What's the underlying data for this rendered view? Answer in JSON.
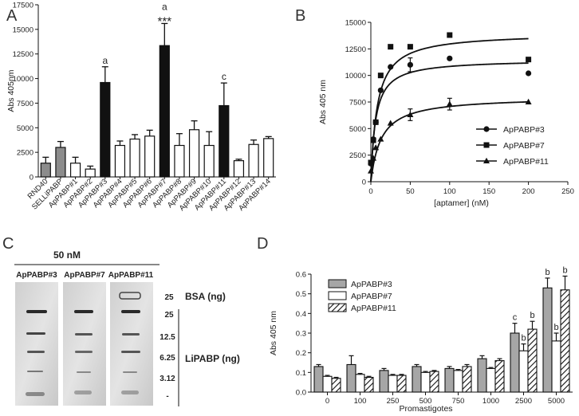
{
  "panel_letters": {
    "A": "A",
    "B": "B",
    "C": "C",
    "D": "D"
  },
  "chart_data": [
    {
      "panel": "A",
      "type": "bar",
      "ylabel": "Abs 405nm",
      "xlabel": "",
      "ylim": [
        0,
        17500
      ],
      "yticks": [
        0,
        2500,
        5000,
        7500,
        10000,
        12500,
        15000,
        17500
      ],
      "categories": [
        "RND40",
        "SELLiPABP",
        "ApPABP#1",
        "ApPABP#2",
        "ApPABP#3",
        "ApPABP#4",
        "ApPABP#5",
        "ApPABP#6",
        "ApPABP#7",
        "ApPABP#8",
        "ApPABP#9",
        "ApPABP#10",
        "ApPABP#11",
        "ApPABP#12",
        "ApPABP#13",
        "ApPABP#14"
      ],
      "values": [
        1400,
        3000,
        1400,
        800,
        9600,
        3200,
        3850,
        4150,
        13350,
        3200,
        4800,
        3200,
        7250,
        1650,
        3300,
        3900
      ],
      "errors": [
        600,
        600,
        600,
        300,
        1600,
        450,
        450,
        600,
        2250,
        1200,
        900,
        1400,
        2300,
        150,
        450,
        200
      ],
      "fill": [
        "#8c8c8c",
        "#8c8c8c",
        "#ffffff",
        "#ffffff",
        "#111111",
        "#ffffff",
        "#ffffff",
        "#ffffff",
        "#111111",
        "#ffffff",
        "#ffffff",
        "#ffffff",
        "#111111",
        "#ffffff",
        "#ffffff",
        "#ffffff"
      ],
      "annotations": [
        {
          "category": "ApPABP#3",
          "text": "a"
        },
        {
          "category": "ApPABP#7",
          "text": "a"
        },
        {
          "category": "ApPABP#7",
          "text": "***"
        },
        {
          "category": "ApPABP#11",
          "text": "c"
        }
      ]
    },
    {
      "panel": "B",
      "type": "scatter",
      "xlabel": "[aptamer] (nM)",
      "ylabel": "Abs 405 nm",
      "xlim": [
        0,
        250
      ],
      "ylim": [
        0,
        15000
      ],
      "xticks": [
        0,
        50,
        100,
        150,
        200,
        250
      ],
      "yticks": [
        0,
        2500,
        5000,
        7500,
        10000,
        12500,
        15000
      ],
      "legend_position": "center-right",
      "series": [
        {
          "name": "ApPABP#3",
          "marker": "circle",
          "x": [
            0,
            3.125,
            6.25,
            12.5,
            25,
            50,
            100,
            200
          ],
          "y": [
            1700,
            4000,
            5600,
            8600,
            10800,
            11000,
            11600,
            10200
          ],
          "err": [
            0,
            0,
            0,
            0,
            0,
            650,
            0,
            0
          ],
          "fit": {
            "bmax": 11500,
            "kd": 6
          }
        },
        {
          "name": "ApPABP#7",
          "marker": "square",
          "x": [
            0,
            3.125,
            6.25,
            12.5,
            25,
            50,
            100,
            200
          ],
          "y": [
            1800,
            3900,
            5600,
            10000,
            12700,
            12700,
            13800,
            11500
          ],
          "err": [
            0,
            0,
            0,
            0,
            0,
            0,
            0,
            0
          ],
          "fit": {
            "bmax": 14000,
            "kd": 8
          }
        },
        {
          "name": "ApPABP#11",
          "marker": "triangle",
          "x": [
            0,
            3.125,
            6.25,
            12.5,
            25,
            50,
            100,
            200
          ],
          "y": [
            1000,
            2200,
            3200,
            4000,
            5500,
            6300,
            7300,
            7500
          ],
          "err": [
            0,
            0,
            0,
            0,
            0,
            550,
            550,
            0
          ],
          "fit": {
            "bmax": 8000,
            "kd": 13
          }
        }
      ]
    },
    {
      "panel": "D",
      "type": "bar",
      "xlabel": "Promastigotes",
      "ylabel": "Abs 405 nm",
      "ylim": [
        0,
        0.6
      ],
      "yticks": [
        "0.0",
        "0.1",
        "0.2",
        "0.3",
        "0.4",
        "0.5",
        "0.6"
      ],
      "legend_position": "top-left",
      "categories": [
        "0",
        "100",
        "250",
        "500",
        "750",
        "1000",
        "2500",
        "5000"
      ],
      "series": [
        {
          "name": "ApPABP#3",
          "pattern": "gray",
          "values": [
            0.13,
            0.14,
            0.11,
            0.13,
            0.12,
            0.17,
            0.3,
            0.53
          ],
          "errors": [
            0.01,
            0.045,
            0.01,
            0.01,
            0.01,
            0.015,
            0.05,
            0.05
          ],
          "labels": [
            "",
            "",
            "",
            "",
            "",
            "",
            "c",
            "b"
          ]
        },
        {
          "name": "ApPABP#7",
          "pattern": "white",
          "values": [
            0.08,
            0.09,
            0.085,
            0.1,
            0.11,
            0.12,
            0.21,
            0.26
          ],
          "errors": [
            0.005,
            0.005,
            0.005,
            0.005,
            0.005,
            0.005,
            0.035,
            0.04
          ],
          "labels": [
            "",
            "",
            "",
            "",
            "",
            "",
            "b",
            "b"
          ]
        },
        {
          "name": "ApPABP#11",
          "pattern": "hatched",
          "values": [
            0.07,
            0.075,
            0.085,
            0.105,
            0.13,
            0.16,
            0.32,
            0.52
          ],
          "errors": [
            0.005,
            0.005,
            0.005,
            0.005,
            0.01,
            0.01,
            0.04,
            0.07
          ],
          "labels": [
            "",
            "",
            "",
            "",
            "",
            "",
            "b",
            "b"
          ]
        }
      ]
    }
  ],
  "blot": {
    "conc_label": "50 nM",
    "lanes": [
      "ApPABP#3",
      "ApPABP#7",
      "ApPABP#11"
    ],
    "bsa_amount": "25",
    "bsa_label": "BSA (ng)",
    "lipabp_amounts": [
      "25",
      "12.5",
      "6.25",
      "3.12",
      "-"
    ],
    "lipabp_label": "LiPABP (ng)"
  }
}
